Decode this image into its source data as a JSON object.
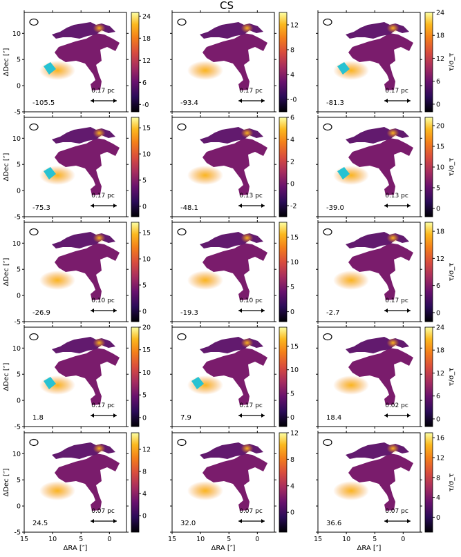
{
  "chart_data": {
    "type": "heatmap",
    "title": "CS",
    "colormap": "inferno",
    "highlight_color": "#27c2d2",
    "outline_color": "#000000",
    "xlabel": "ΔRA [″]",
    "ylabel": "ΔDec [″]",
    "colorbar_label": "τ/σ_τ",
    "xlim": [
      15,
      -3
    ],
    "ylim": [
      -5,
      14
    ],
    "xticks": [
      "15",
      "10",
      "5",
      "0"
    ],
    "yticks": [
      "-5",
      "0",
      "5",
      "10"
    ],
    "arrow_style": "double-headed",
    "panels": [
      {
        "velocity": "-105.5",
        "scale": "0.17 pc",
        "cbar_range": [
          -2,
          25
        ],
        "cbar_ticks": [
          "-0",
          "6",
          "12",
          "18",
          "24"
        ],
        "cbar_labeled": false,
        "cyan": true
      },
      {
        "velocity": "-93.4",
        "scale": "0.17 pc",
        "cbar_range": [
          -2,
          14
        ],
        "cbar_ticks": [
          "-0",
          "4",
          "8",
          "12"
        ],
        "cbar_labeled": false,
        "cyan": false
      },
      {
        "velocity": "-81.3",
        "scale": "0.17 pc",
        "cbar_range": [
          -2,
          24
        ],
        "cbar_ticks": [
          "0",
          "6",
          "12",
          "18",
          "24"
        ],
        "cbar_labeled": true,
        "cyan": true
      },
      {
        "velocity": "-75.3",
        "scale": "0.17 pc",
        "cbar_range": [
          -2,
          17
        ],
        "cbar_ticks": [
          "0",
          "5",
          "10",
          "15"
        ],
        "cbar_labeled": false,
        "cyan": true
      },
      {
        "velocity": "-48.1",
        "scale": "0.13 pc",
        "cbar_range": [
          -3,
          6
        ],
        "cbar_ticks": [
          "-2",
          "0",
          "2",
          "4",
          "6"
        ],
        "cbar_labeled": false,
        "cyan": false
      },
      {
        "velocity": "-39.0",
        "scale": "0.13 pc",
        "cbar_range": [
          -2,
          22
        ],
        "cbar_ticks": [
          "0",
          "5",
          "10",
          "15",
          "20"
        ],
        "cbar_labeled": true,
        "cyan": true
      },
      {
        "velocity": "-26.9",
        "scale": "0.10 pc",
        "cbar_range": [
          -2,
          17
        ],
        "cbar_ticks": [
          "0",
          "5",
          "10",
          "15"
        ],
        "cbar_labeled": false,
        "cyan": false
      },
      {
        "velocity": "-19.3",
        "scale": "0.10 pc",
        "cbar_range": [
          -2,
          18
        ],
        "cbar_ticks": [
          "0",
          "5",
          "10",
          "15"
        ],
        "cbar_labeled": false,
        "cyan": false
      },
      {
        "velocity": "-2.7",
        "scale": "0.17 pc",
        "cbar_range": [
          -2,
          20
        ],
        "cbar_ticks": [
          "0",
          "6",
          "12",
          "18"
        ],
        "cbar_labeled": true,
        "cyan": false
      },
      {
        "velocity": "1.8",
        "scale": "0.17 pc",
        "cbar_range": [
          -2,
          20
        ],
        "cbar_ticks": [
          "0",
          "5",
          "10",
          "15",
          "20"
        ],
        "cbar_labeled": false,
        "cyan": true
      },
      {
        "velocity": "7.9",
        "scale": "0.17 pc",
        "cbar_range": [
          -2,
          19
        ],
        "cbar_ticks": [
          "0",
          "5",
          "10",
          "15"
        ],
        "cbar_labeled": false,
        "cyan": true
      },
      {
        "velocity": "18.4",
        "scale": "0.02 pc",
        "cbar_range": [
          -2,
          24
        ],
        "cbar_ticks": [
          "0",
          "6",
          "12",
          "18",
          "24"
        ],
        "cbar_labeled": true,
        "cyan": false
      },
      {
        "velocity": "24.5",
        "scale": "0.07 pc",
        "cbar_range": [
          -3,
          15
        ],
        "cbar_ticks": [
          "0",
          "4",
          "8",
          "12"
        ],
        "cbar_labeled": false,
        "cyan": false
      },
      {
        "velocity": "32.0",
        "scale": "0.07 pc",
        "cbar_range": [
          -3,
          12
        ],
        "cbar_ticks": [
          "0",
          "4",
          "8",
          "12"
        ],
        "cbar_labeled": false,
        "cyan": false
      },
      {
        "velocity": "36.6",
        "scale": "0.07 pc",
        "cbar_range": [
          -3,
          17
        ],
        "cbar_ticks": [
          "0",
          "4",
          "8",
          "12",
          "16"
        ],
        "cbar_labeled": true,
        "cyan": false
      }
    ]
  }
}
